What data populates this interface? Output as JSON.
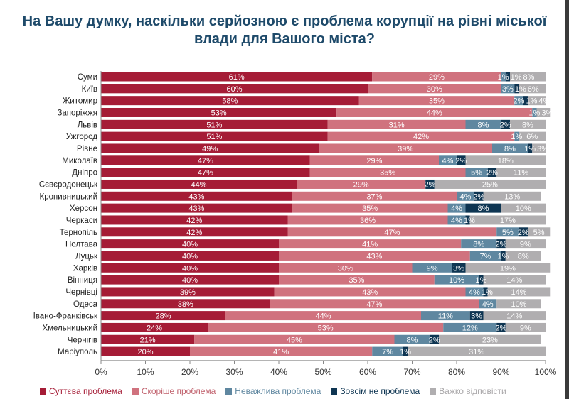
{
  "chart_data": {
    "type": "bar",
    "orientation": "horizontal",
    "stacked": true,
    "title": "На Вашу думку, наскільки серйозною є проблема корупції на рівні міської влади для Вашого міста?",
    "categories": [
      "Суми",
      "Київ",
      "Житомир",
      "Запоріжжя",
      "Львів",
      "Ужгород",
      "Рівне",
      "Миколаїв",
      "Дніпро",
      "Сєвєродонецьк",
      "Кропивницький",
      "Херсон",
      "Черкаси",
      "Тернопіль",
      "Полтава",
      "Луцьк",
      "Харків",
      "Вінниця",
      "Чернівці",
      "Одеса",
      "Івано-Франківськ",
      "Хмельницький",
      "Чернігів",
      "Маріуполь"
    ],
    "series": [
      {
        "name": "Суттєва проблема",
        "color": "#a51c36",
        "values": [
          61,
          60,
          58,
          53,
          51,
          51,
          49,
          47,
          47,
          44,
          43,
          43,
          42,
          42,
          40,
          40,
          40,
          40,
          39,
          38,
          28,
          24,
          21,
          20
        ]
      },
      {
        "name": "Скоріше проблема",
        "color": "#d0727e",
        "values": [
          29,
          30,
          35,
          44,
          31,
          42,
          39,
          29,
          35,
          29,
          37,
          35,
          36,
          47,
          41,
          43,
          30,
          35,
          43,
          47,
          44,
          53,
          45,
          41
        ]
      },
      {
        "name": "Неважлива проблема",
        "color": "#5f87a0",
        "values": [
          1,
          3,
          2,
          1,
          8,
          1,
          8,
          4,
          5,
          0,
          4,
          4,
          4,
          5,
          8,
          7,
          9,
          10,
          4,
          4,
          11,
          12,
          8,
          7
        ]
      },
      {
        "name": "Зовсім не проблема",
        "color": "#0e3552",
        "values": [
          1,
          1,
          1,
          0,
          2,
          0,
          1,
          2,
          2,
          2,
          2,
          8,
          1,
          2,
          2,
          1,
          3,
          1,
          1,
          0,
          3,
          2,
          2,
          1
        ]
      },
      {
        "name": "Важко відповісти",
        "color": "#b0aeb0",
        "values": [
          8,
          6,
          4,
          3,
          8,
          6,
          3,
          18,
          11,
          25,
          13,
          10,
          17,
          5,
          9,
          8,
          19,
          14,
          14,
          10,
          14,
          9,
          23,
          31
        ]
      }
    ],
    "xlim": [
      0,
      100
    ],
    "xticks": [
      "0%",
      "10%",
      "20%",
      "30%",
      "40%",
      "50%",
      "60%",
      "70%",
      "80%",
      "90%",
      "100%"
    ],
    "legend_position": "bottom",
    "grid": false
  }
}
